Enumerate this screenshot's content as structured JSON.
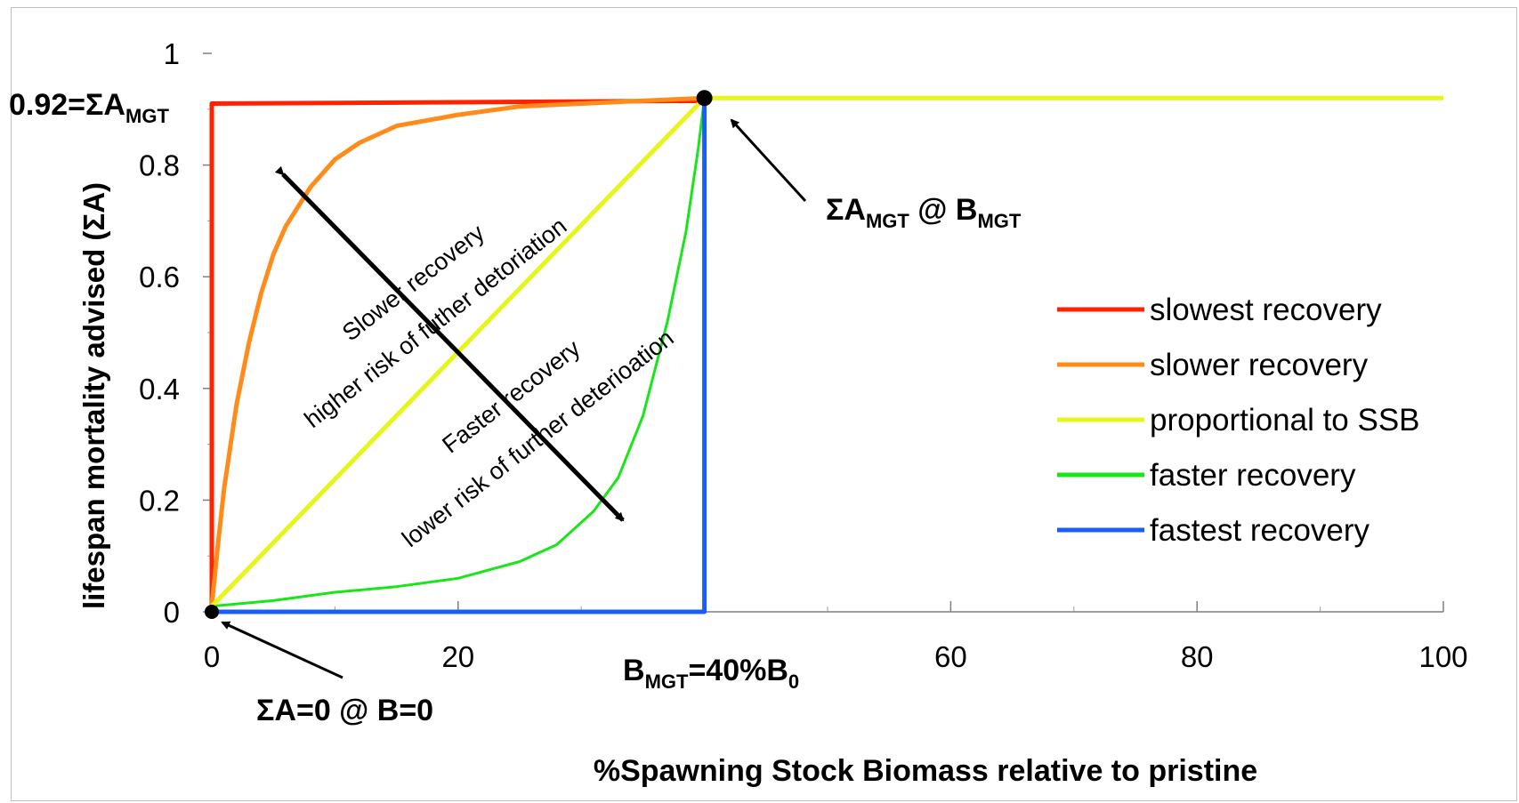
{
  "chart_data": {
    "type": "line",
    "xlabel": "%Spawning Stock Biomass relative to pristine",
    "ylabel": "lifespan mortality advised (ΣA)",
    "xlim": [
      0,
      100
    ],
    "ylim": [
      0,
      1
    ],
    "x_ticks": [
      0,
      20,
      40,
      60,
      80,
      100
    ],
    "x_tick_labels": [
      "0",
      "20",
      "",
      "60",
      "80",
      "100"
    ],
    "y_ticks": [
      0,
      0.2,
      0.4,
      0.6,
      0.8,
      1
    ],
    "y_tick_labels": [
      "0",
      "0.2",
      "0.4",
      "0.6",
      "0.8",
      "1"
    ],
    "grid": false,
    "legend_placement": "right",
    "sa_mgt": 0.92,
    "b_mgt": 40,
    "series": [
      {
        "name": "slowest recovery",
        "color": "#ff2200",
        "points": [
          [
            0,
            0
          ],
          [
            0,
            0.85
          ],
          [
            0,
            0.91
          ],
          [
            40,
            0.915
          ]
        ]
      },
      {
        "name": "slower recovery",
        "color": "#ff8c1a",
        "points": [
          [
            0,
            0.01
          ],
          [
            0.5,
            0.12
          ],
          [
            1,
            0.22
          ],
          [
            2,
            0.37
          ],
          [
            3,
            0.48
          ],
          [
            4,
            0.57
          ],
          [
            5,
            0.64
          ],
          [
            6,
            0.69
          ],
          [
            8,
            0.76
          ],
          [
            10,
            0.81
          ],
          [
            12,
            0.84
          ],
          [
            15,
            0.87
          ],
          [
            20,
            0.89
          ],
          [
            25,
            0.905
          ],
          [
            30,
            0.91
          ],
          [
            35,
            0.915
          ],
          [
            40,
            0.92
          ]
        ]
      },
      {
        "name": "proportional to SSB",
        "color": "#e6f51a",
        "points": [
          [
            0,
            0.01
          ],
          [
            40,
            0.92
          ],
          [
            100,
            0.92
          ]
        ]
      },
      {
        "name": "faster recovery",
        "color": "#19e619",
        "points": [
          [
            0,
            0.01
          ],
          [
            5,
            0.02
          ],
          [
            10,
            0.035
          ],
          [
            15,
            0.045
          ],
          [
            20,
            0.06
          ],
          [
            25,
            0.09
          ],
          [
            28,
            0.12
          ],
          [
            31,
            0.18
          ],
          [
            33,
            0.24
          ],
          [
            35,
            0.35
          ],
          [
            37,
            0.52
          ],
          [
            38.5,
            0.68
          ],
          [
            39.5,
            0.83
          ],
          [
            40,
            0.92
          ]
        ]
      },
      {
        "name": "fastest recovery",
        "color": "#1a5ff5",
        "points": [
          [
            0,
            0
          ],
          [
            40,
            0
          ],
          [
            40,
            0.92
          ]
        ]
      }
    ],
    "annotations": {
      "sa_mgt_label": {
        "pre": "0.92=ΣA",
        "sub": "MGT"
      },
      "point_label": {
        "a": "ΣA",
        "a_sub": "MGT",
        "mid": " @ B",
        "b_sub": "MGT"
      },
      "origin_label": "ΣA=0 @ B=0",
      "b_mgt_label": {
        "pre": "B",
        "pre_sub": "MGT",
        "mid": "=40%B",
        "end_sub": "0"
      },
      "slower_line1": "Slower recovery",
      "slower_line2": "higher risk of futher detoriation",
      "faster_line1": "Faster recovery",
      "faster_line2": "lower risk of further deterioation"
    }
  }
}
